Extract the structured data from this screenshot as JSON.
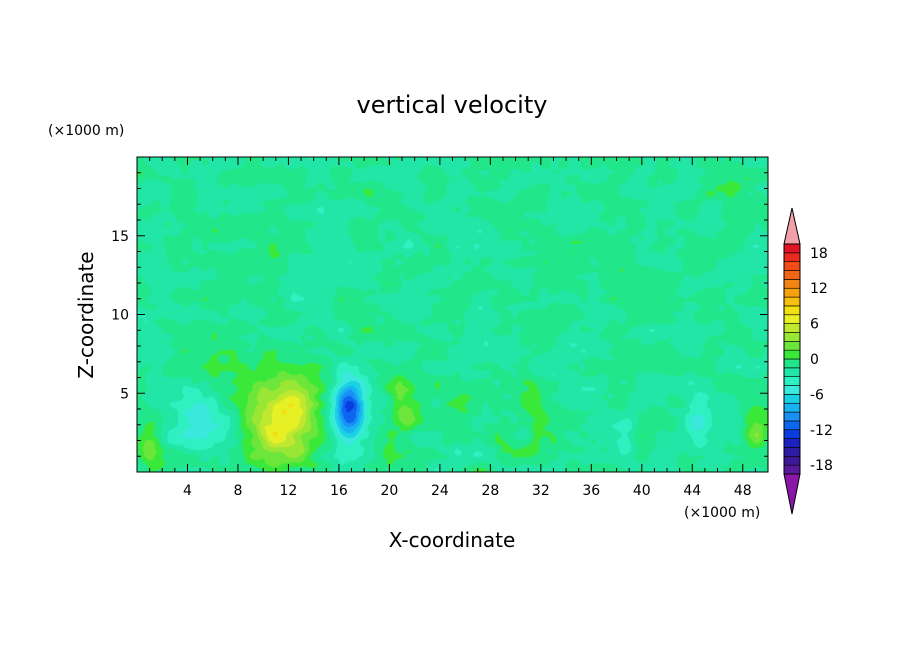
{
  "chart_data": {
    "type": "heatmap",
    "title": "vertical velocity",
    "xlabel": "X-coordinate",
    "ylabel": "Z-coordinate",
    "x_unit": "(×1000 m)",
    "y_unit": "(×1000 m)",
    "xlim": [
      0,
      50
    ],
    "ylim": [
      0,
      20
    ],
    "x_ticks": [
      "4",
      "8",
      "12",
      "16",
      "20",
      "24",
      "28",
      "32",
      "36",
      "40",
      "44",
      "48"
    ],
    "y_ticks": [
      "5",
      "10",
      "15"
    ],
    "background_level": -1.5,
    "features": [
      {
        "x": 11.6,
        "z": 3.4,
        "sx": 2.0,
        "sz": 1.9,
        "amp": 9.5
      },
      {
        "x": 16.8,
        "z": 4.0,
        "sx": 0.9,
        "sz": 1.4,
        "amp": -11.5
      },
      {
        "x": 4.7,
        "z": 3.5,
        "sx": 1.8,
        "sz": 1.4,
        "amp": -4.2
      },
      {
        "x": 20.9,
        "z": 4.0,
        "sx": 0.9,
        "sz": 1.3,
        "amp": 3.6
      },
      {
        "x": 1.0,
        "z": 1.5,
        "sx": 0.7,
        "sz": 1.2,
        "amp": 3.5
      },
      {
        "x": 49.0,
        "z": 2.5,
        "sx": 0.8,
        "sz": 1.3,
        "amp": 3.2
      },
      {
        "x": 44.4,
        "z": 3.2,
        "sx": 0.7,
        "sz": 1.3,
        "amp": -3.0
      },
      {
        "x": 38.8,
        "z": 2.2,
        "sx": 0.6,
        "sz": 0.9,
        "amp": -2.5
      },
      {
        "x": 31.5,
        "z": 3.0,
        "sx": 0.6,
        "sz": 1.6,
        "amp": 1.7
      },
      {
        "x": 28.0,
        "z": 4.5,
        "sx": 2.0,
        "sz": 1.0,
        "amp": 1.5
      },
      {
        "x": 8.0,
        "z": 6.5,
        "sx": 2.0,
        "sz": 1.0,
        "amp": 1.6
      }
    ],
    "colorbar": {
      "levels": [
        -21,
        -19.5,
        -18,
        -16.5,
        -15,
        -13.5,
        -12,
        -10.5,
        -9,
        -7.5,
        -6,
        -4.5,
        -3,
        -1.5,
        0,
        1.5,
        3,
        4.5,
        6,
        7.5,
        9,
        10.5,
        12,
        13.5,
        15,
        16.5,
        18,
        19.5,
        21
      ],
      "tick_labels": [
        "18",
        "12",
        "6",
        "0",
        "-6",
        "-12",
        "-18"
      ],
      "tick_values": [
        18,
        12,
        6,
        0,
        -6,
        -12,
        -18
      ],
      "colors": [
        "#8a17a8",
        "#5a1a9c",
        "#3a1896",
        "#2d1ba6",
        "#1c22c2",
        "#0a3ce0",
        "#0c66f0",
        "#1a90f5",
        "#18b4f2",
        "#1ad2e4",
        "#3ae8dc",
        "#2ef0c0",
        "#22e6a6",
        "#22e68a",
        "#3ae83a",
        "#6ce63a",
        "#9ae634",
        "#c0e830",
        "#e6f024",
        "#f2e012",
        "#f6c010",
        "#f6a010",
        "#f48414",
        "#f26418",
        "#f04c18",
        "#ea2a1e",
        "#e01426",
        "#f0a0a6"
      ]
    }
  }
}
